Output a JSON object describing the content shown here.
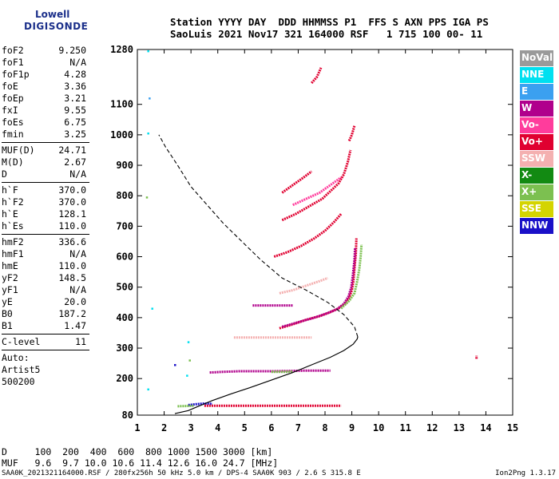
{
  "logo": {
    "line1": "Lowell",
    "line2": "DIGISONDE"
  },
  "header": {
    "line1": "Station YYYY DAY  DDD HHMMSS P1  FFS S AXN PPS IGA PS",
    "line2": "SaoLuis 2021 Nov17 321 164000 RSF   1 715 100 00- 11"
  },
  "params": {
    "group1": [
      {
        "name": "foF2",
        "value": "9.250"
      },
      {
        "name": "foF1",
        "value": "N/A"
      },
      {
        "name": "foF1p",
        "value": "4.28"
      },
      {
        "name": "foE",
        "value": "3.36"
      },
      {
        "name": "foEp",
        "value": "3.21"
      },
      {
        "name": "fxI",
        "value": "9.55"
      },
      {
        "name": "foEs",
        "value": "6.75"
      },
      {
        "name": "fmin",
        "value": "3.25"
      }
    ],
    "group2": [
      {
        "name": "MUF(D)",
        "value": "24.71"
      },
      {
        "name": "M(D)",
        "value": "2.67"
      },
      {
        "name": "D",
        "value": "N/A"
      }
    ],
    "group3": [
      {
        "name": "h`F",
        "value": "370.0"
      },
      {
        "name": "h`F2",
        "value": "370.0"
      },
      {
        "name": "h`E",
        "value": "128.1"
      },
      {
        "name": "h`Es",
        "value": "110.0"
      }
    ],
    "group4": [
      {
        "name": "hmF2",
        "value": "336.6"
      },
      {
        "name": "hmF1",
        "value": "N/A"
      },
      {
        "name": "hmE",
        "value": "110.0"
      },
      {
        "name": "yF2",
        "value": "148.5"
      },
      {
        "name": "yF1",
        "value": "N/A"
      },
      {
        "name": "yE",
        "value": "20.0"
      },
      {
        "name": "B0",
        "value": "187.2"
      },
      {
        "name": "B1",
        "value": "1.47"
      }
    ],
    "group5": [
      {
        "name": "C-level",
        "value": "11"
      }
    ],
    "autoscaling": [
      "Auto:",
      "Artist5",
      "500200"
    ]
  },
  "legend": [
    {
      "label": "NoVal",
      "color": "#9a9a9a"
    },
    {
      "label": "NNE",
      "color": "#00e0f0"
    },
    {
      "label": "E",
      "color": "#3ba0f0"
    },
    {
      "label": "W",
      "color": "#b0008c"
    },
    {
      "label": "Vo-",
      "color": "#ff3c9c"
    },
    {
      "label": "Vo+",
      "color": "#e00030"
    },
    {
      "label": "SSW",
      "color": "#f4b0b0"
    },
    {
      "label": "X-",
      "color": "#128a12"
    },
    {
      "label": "X+",
      "color": "#7cc050"
    },
    {
      "label": "SSE",
      "color": "#d4d400"
    },
    {
      "label": "NNW",
      "color": "#1a10c8"
    }
  ],
  "bottom": {
    "line1": "D     100  200  400  600  800 1000 1500 3000 [km]",
    "line2": "MUF   9.6  9.7 10.0 10.6 11.4 12.6 16.0 24.7 [MHz]"
  },
  "footer": "SAA0K_2021321164000.RSF / 280fx256h 50 kHz 5.0 km / DPS-4 SAA0K 903 / 2.6 S 315.8 E",
  "version": "Ion2Png 1.3.17",
  "chart_data": {
    "type": "scatter",
    "xlim": [
      1,
      15
    ],
    "x_ticks": [
      1,
      2,
      3,
      4,
      5,
      6,
      7,
      8,
      9,
      10,
      11,
      12,
      13,
      14,
      15
    ],
    "y_ticks": [
      80,
      200,
      300,
      400,
      500,
      600,
      700,
      800,
      900,
      1000,
      1100,
      1280
    ],
    "ylim": [
      80,
      1280
    ],
    "grid": false,
    "profile_line": [
      [
        2.4,
        85
      ],
      [
        2.9,
        95
      ],
      [
        3.3,
        110
      ],
      [
        3.8,
        128
      ],
      [
        4.5,
        150
      ],
      [
        5.2,
        170
      ],
      [
        6.0,
        195
      ],
      [
        6.8,
        220
      ],
      [
        7.5,
        245
      ],
      [
        8.2,
        270
      ],
      [
        8.7,
        292
      ],
      [
        9.05,
        313
      ],
      [
        9.2,
        330
      ],
      [
        9.22,
        337
      ]
    ],
    "profile_topside_dashed": [
      [
        9.22,
        337
      ],
      [
        9.1,
        370
      ],
      [
        8.7,
        410
      ],
      [
        8.1,
        450
      ],
      [
        7.3,
        490
      ],
      [
        6.4,
        530
      ],
      [
        5.6,
        590
      ],
      [
        4.9,
        650
      ],
      [
        4.2,
        710
      ],
      [
        3.6,
        770
      ],
      [
        3.0,
        830
      ],
      [
        2.5,
        900
      ],
      [
        2.05,
        960
      ],
      [
        1.8,
        1000
      ]
    ],
    "traces": [
      {
        "color": "#e00030",
        "points": [
          [
            6.3,
            365
          ],
          [
            6.8,
            378
          ],
          [
            7.3,
            393
          ],
          [
            7.8,
            405
          ],
          [
            8.2,
            418
          ],
          [
            8.5,
            430
          ],
          [
            8.75,
            445
          ],
          [
            8.9,
            465
          ],
          [
            9.0,
            490
          ],
          [
            9.06,
            520
          ],
          [
            9.1,
            560
          ],
          [
            9.15,
            610
          ],
          [
            9.17,
            660
          ]
        ]
      },
      {
        "color": "#b0008c",
        "points": [
          [
            6.4,
            370
          ],
          [
            7.0,
            385
          ],
          [
            7.6,
            400
          ],
          [
            8.1,
            415
          ],
          [
            8.45,
            428
          ],
          [
            8.7,
            445
          ],
          [
            8.88,
            470
          ],
          [
            8.98,
            500
          ],
          [
            9.04,
            540
          ],
          [
            9.1,
            590
          ],
          [
            9.12,
            630
          ]
        ]
      },
      {
        "color": "#7cc050",
        "points": [
          [
            8.6,
            430
          ],
          [
            8.9,
            455
          ],
          [
            9.1,
            480
          ],
          [
            9.2,
            520
          ],
          [
            9.28,
            560
          ],
          [
            9.33,
            600
          ],
          [
            9.36,
            640
          ]
        ]
      },
      {
        "color": "#e00030",
        "points": [
          [
            6.1,
            600
          ],
          [
            6.6,
            615
          ],
          [
            7.1,
            635
          ],
          [
            7.6,
            660
          ],
          [
            8.0,
            685
          ],
          [
            8.35,
            715
          ],
          [
            8.6,
            740
          ]
        ]
      },
      {
        "color": "#e00030",
        "points": [
          [
            6.4,
            720
          ],
          [
            6.9,
            740
          ],
          [
            7.4,
            765
          ],
          [
            7.9,
            790
          ],
          [
            8.2,
            815
          ],
          [
            8.5,
            840
          ],
          [
            8.7,
            870
          ],
          [
            8.85,
            910
          ],
          [
            8.95,
            950
          ]
        ]
      },
      {
        "color": "#ff3c9c",
        "points": [
          [
            6.8,
            770
          ],
          [
            7.3,
            790
          ],
          [
            7.8,
            810
          ],
          [
            8.2,
            835
          ],
          [
            8.6,
            860
          ]
        ]
      },
      {
        "color": "#e00030",
        "points": [
          [
            6.4,
            810
          ],
          [
            6.8,
            835
          ],
          [
            7.2,
            860
          ],
          [
            7.5,
            880
          ]
        ]
      },
      {
        "color": "#e00030",
        "points": [
          [
            8.9,
            980
          ],
          [
            9.0,
            1000
          ],
          [
            9.1,
            1030
          ]
        ]
      },
      {
        "color": "#e00030",
        "points": [
          [
            7.5,
            1170
          ],
          [
            7.7,
            1190
          ],
          [
            7.85,
            1220
          ]
        ]
      },
      {
        "color": "#f4b0b0",
        "points": [
          [
            6.3,
            480
          ],
          [
            6.8,
            490
          ],
          [
            7.3,
            505
          ],
          [
            7.8,
            520
          ],
          [
            8.1,
            530
          ]
        ]
      },
      {
        "color": "#b0008c",
        "points": [
          [
            5.3,
            440
          ],
          [
            5.8,
            440
          ],
          [
            6.3,
            440
          ],
          [
            6.8,
            440
          ]
        ]
      },
      {
        "color": "#f4b0b0",
        "points": [
          [
            4.6,
            335
          ],
          [
            5.2,
            335
          ],
          [
            5.8,
            335
          ],
          [
            6.5,
            335
          ],
          [
            7.0,
            335
          ],
          [
            7.5,
            335
          ]
        ]
      },
      {
        "color": "#b0008c",
        "points": [
          [
            3.7,
            220
          ],
          [
            4.2,
            222
          ],
          [
            4.8,
            224
          ],
          [
            5.4,
            224
          ],
          [
            6.0,
            224
          ],
          [
            6.6,
            225
          ],
          [
            7.2,
            226
          ],
          [
            7.8,
            226
          ],
          [
            8.2,
            226
          ]
        ]
      },
      {
        "color": "#7cc050",
        "points": [
          [
            6.0,
            222
          ],
          [
            6.4,
            222
          ],
          [
            6.8,
            223
          ]
        ]
      },
      {
        "color": "#1a10c8",
        "points": [
          [
            2.9,
            113
          ],
          [
            3.2,
            116
          ],
          [
            3.5,
            118
          ],
          [
            3.8,
            117
          ]
        ]
      },
      {
        "color": "#e00030",
        "points": [
          [
            3.5,
            111
          ],
          [
            4.1,
            111
          ],
          [
            4.7,
            111
          ],
          [
            5.3,
            111
          ],
          [
            5.9,
            111
          ],
          [
            6.5,
            111
          ],
          [
            7.1,
            111
          ],
          [
            7.7,
            111
          ],
          [
            8.3,
            111
          ],
          [
            8.6,
            111
          ]
        ]
      },
      {
        "color": "#7cc050",
        "points": [
          [
            2.5,
            109
          ],
          [
            2.8,
            110
          ],
          [
            3.1,
            111
          ]
        ]
      },
      {
        "color": "#e00030",
        "points": [
          [
            13.65,
            265
          ],
          [
            13.65,
            275
          ]
        ]
      }
    ]
  }
}
